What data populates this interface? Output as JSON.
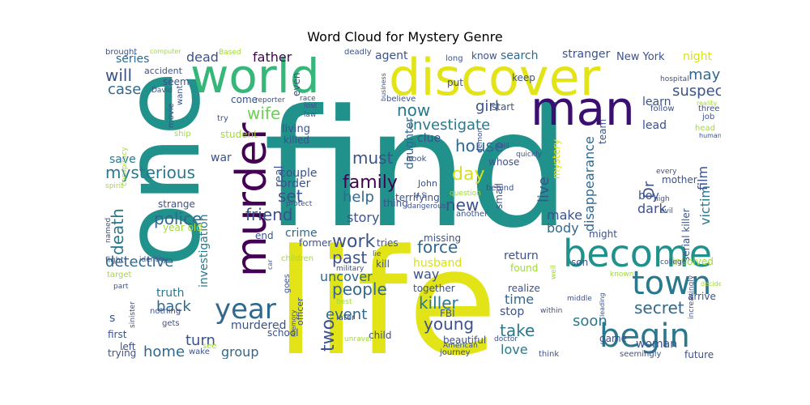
{
  "title": "Word Cloud for Mystery Genre",
  "words": [
    {
      "t": "find",
      "c": "#21918c"
    },
    {
      "t": "life",
      "c": "#e3e418"
    },
    {
      "t": "one",
      "c": "#21918c"
    },
    {
      "t": "discover",
      "c": "#e3e418"
    },
    {
      "t": "world",
      "c": "#35b779"
    },
    {
      "t": "man",
      "c": "#3b0f70"
    },
    {
      "t": "murder",
      "c": "#440154"
    },
    {
      "t": "become",
      "c": "#21918c"
    },
    {
      "t": "town",
      "c": "#2a788e"
    },
    {
      "t": "begin",
      "c": "#2a788e"
    },
    {
      "t": "year",
      "c": "#31688e"
    },
    {
      "t": "mysterious",
      "c": "#2a788e"
    },
    {
      "t": "investigate",
      "c": "#2a788e"
    },
    {
      "t": "wife",
      "c": "#6ece58"
    },
    {
      "t": "death",
      "c": "#2a788e"
    },
    {
      "t": "police",
      "c": "#31688e"
    },
    {
      "t": "family",
      "c": "#440154"
    },
    {
      "t": "friend",
      "c": "#3b528b"
    },
    {
      "t": "detective",
      "c": "#31688e"
    },
    {
      "t": "secret",
      "c": "#31688e"
    },
    {
      "t": "killer",
      "c": "#2a788e"
    },
    {
      "t": "past",
      "c": "#3b528b"
    },
    {
      "t": "work",
      "c": "#3b528b"
    },
    {
      "t": "force",
      "c": "#31688e"
    },
    {
      "t": "people",
      "c": "#31688e"
    },
    {
      "t": "young",
      "c": "#3b528b"
    },
    {
      "t": "two",
      "c": "#3b528b"
    },
    {
      "t": "back",
      "c": "#31688e"
    },
    {
      "t": "take",
      "c": "#2a788e"
    },
    {
      "t": "soon",
      "c": "#2a788e"
    },
    {
      "t": "home",
      "c": "#31688e"
    },
    {
      "t": "must",
      "c": "#3b528b"
    },
    {
      "t": "day",
      "c": "#d8e219"
    },
    {
      "t": "house",
      "c": "#31688e"
    },
    {
      "t": "new",
      "c": "#3b528b"
    },
    {
      "t": "help",
      "c": "#31688e"
    },
    {
      "t": "set",
      "c": "#3b528b"
    },
    {
      "t": "now",
      "c": "#2a788e"
    },
    {
      "t": "girl",
      "c": "#3b528b"
    },
    {
      "t": "suspect",
      "c": "#3b528b"
    },
    {
      "t": "may",
      "c": "#31688e"
    },
    {
      "t": "case",
      "c": "#31688e"
    },
    {
      "t": "will",
      "c": "#3b528b"
    },
    {
      "t": "series",
      "c": "#31688e"
    },
    {
      "t": "dead",
      "c": "#3b528b"
    },
    {
      "t": "father",
      "c": "#440154"
    },
    {
      "t": "event",
      "c": "#31688e"
    },
    {
      "t": "husband",
      "c": "#d8e219"
    },
    {
      "t": "dark",
      "c": "#3b528b"
    },
    {
      "t": "live",
      "c": "#3b528b"
    },
    {
      "t": "disappearance",
      "c": "#31688e"
    },
    {
      "t": "investigation",
      "c": "#2a788e"
    },
    {
      "t": "victim",
      "c": "#2a788e"
    },
    {
      "t": "film",
      "c": "#3b528b"
    },
    {
      "t": "Dr",
      "c": "#3b528b"
    },
    {
      "t": "group",
      "c": "#31688e"
    },
    {
      "t": "woman",
      "c": "#3b528b"
    },
    {
      "t": "love",
      "c": "#2a788e"
    },
    {
      "t": "uncover",
      "c": "#31688e"
    },
    {
      "t": "way",
      "c": "#3b528b"
    },
    {
      "t": "story",
      "c": "#3b528b"
    },
    {
      "t": "body",
      "c": "#31688e"
    },
    {
      "t": "make",
      "c": "#3b528b"
    },
    {
      "t": "turn",
      "c": "#3b528b"
    },
    {
      "t": "murdered",
      "c": "#3b528b"
    },
    {
      "t": "truth",
      "c": "#2a788e"
    },
    {
      "t": "return",
      "c": "#3b528b"
    },
    {
      "t": "time",
      "c": "#31688e"
    },
    {
      "t": "stop",
      "c": "#3b528b"
    },
    {
      "t": "crime",
      "c": "#31688e"
    },
    {
      "t": "save",
      "c": "#2a788e"
    },
    {
      "t": "couple",
      "c": "#3b528b"
    },
    {
      "t": "order",
      "c": "#3b528b"
    },
    {
      "t": "search",
      "c": "#31688e"
    },
    {
      "t": "stranger",
      "c": "#3b528b"
    },
    {
      "t": "New York",
      "c": "#3b528b"
    },
    {
      "t": "night",
      "c": "#d8e219"
    },
    {
      "t": "know",
      "c": "#3b528b"
    },
    {
      "t": "agent",
      "c": "#3b528b"
    },
    {
      "t": "seem",
      "c": "#3b528b"
    },
    {
      "t": "daughter",
      "c": "#31688e"
    },
    {
      "t": "clue",
      "c": "#3b528b"
    },
    {
      "t": "terrifying",
      "c": "#3b528b"
    },
    {
      "t": "mystery",
      "c": "#d8e219"
    },
    {
      "t": "boy",
      "c": "#3b528b"
    },
    {
      "t": "serial killer",
      "c": "#3b528b"
    },
    {
      "t": "strange",
      "c": "#3b528b"
    },
    {
      "t": "learn",
      "c": "#3b528b"
    },
    {
      "t": "lead",
      "c": "#3b528b"
    },
    {
      "t": "might",
      "c": "#3b528b"
    },
    {
      "t": "son",
      "c": "#3b528b"
    },
    {
      "t": "together",
      "c": "#3b528b"
    },
    {
      "t": "living",
      "c": "#3b528b"
    },
    {
      "t": "war",
      "c": "#3b528b"
    },
    {
      "t": "real",
      "c": "#3b528b"
    },
    {
      "t": "thing",
      "c": "#3b528b"
    },
    {
      "t": "missing",
      "c": "#3b528b"
    },
    {
      "t": "small",
      "c": "#3b528b"
    },
    {
      "t": "mother",
      "c": "#3b528b"
    },
    {
      "t": "arrive",
      "c": "#3b528b"
    },
    {
      "t": "involved",
      "c": "#a0da39"
    },
    {
      "t": "found",
      "c": "#a0da39"
    },
    {
      "t": "realize",
      "c": "#3b528b"
    },
    {
      "t": "FBI",
      "c": "#3b528b"
    },
    {
      "t": "game",
      "c": "#3b528b"
    },
    {
      "t": "beautiful",
      "c": "#3b528b"
    },
    {
      "t": "future",
      "c": "#3b528b"
    },
    {
      "t": "seemingly",
      "c": "#3b528b"
    },
    {
      "t": "start",
      "c": "#3b528b"
    },
    {
      "t": "killed",
      "c": "#3b528b"
    },
    {
      "t": "former",
      "c": "#3b528b"
    },
    {
      "t": "end",
      "c": "#3b528b"
    },
    {
      "t": "year old",
      "c": "#a0da39"
    },
    {
      "t": "student",
      "c": "#a0da39"
    },
    {
      "t": "come",
      "c": "#3b528b"
    },
    {
      "t": "even",
      "c": "#3b528b"
    },
    {
      "t": "put",
      "c": "#3b528b"
    },
    {
      "t": "keep",
      "c": "#3b528b"
    },
    {
      "t": "team",
      "c": "#3b528b"
    },
    {
      "t": "job",
      "c": "#3b528b"
    },
    {
      "t": "three",
      "c": "#3b528b"
    },
    {
      "t": "head",
      "c": "#a0da39"
    },
    {
      "t": "follow",
      "c": "#3b528b"
    },
    {
      "t": "John",
      "c": "#3b528b"
    },
    {
      "t": "U S",
      "c": "#3b528b"
    },
    {
      "t": "whose",
      "c": "#3b528b"
    },
    {
      "t": "behind",
      "c": "#3b528b"
    },
    {
      "t": "another",
      "c": "#3b528b"
    },
    {
      "t": "tries",
      "c": "#3b528b"
    },
    {
      "t": "kill",
      "c": "#3b528b"
    },
    {
      "t": "goes",
      "c": "#3b528b"
    },
    {
      "t": "officer",
      "c": "#3b528b"
    },
    {
      "t": "school",
      "c": "#3b528b"
    },
    {
      "t": "later",
      "c": "#3b528b"
    },
    {
      "t": "child",
      "c": "#3b528b"
    },
    {
      "t": "journey",
      "c": "#3b528b"
    },
    {
      "t": "think",
      "c": "#3b528b"
    },
    {
      "t": "trying",
      "c": "#3b528b"
    },
    {
      "t": "first",
      "c": "#3b528b"
    },
    {
      "t": "left",
      "c": "#3b528b"
    },
    {
      "t": "wake",
      "c": "#3b528b"
    },
    {
      "t": "see",
      "c": "#a0da39"
    },
    {
      "t": "brought",
      "c": "#3b528b"
    },
    {
      "t": "computer",
      "c": "#a0da39"
    },
    {
      "t": "Based",
      "c": "#a0da39"
    },
    {
      "t": "deadly",
      "c": "#3b528b"
    },
    {
      "t": "long",
      "c": "#3b528b"
    },
    {
      "t": "accident",
      "c": "#3b528b"
    },
    {
      "t": "David",
      "c": "#3b528b"
    },
    {
      "t": "want",
      "c": "#3b528b"
    },
    {
      "t": "movie",
      "c": "#3b528b"
    },
    {
      "t": "ship",
      "c": "#a0da39"
    },
    {
      "t": "conspiracy",
      "c": "#a0da39"
    },
    {
      "t": "spirit",
      "c": "#a0da39"
    },
    {
      "t": "named",
      "c": "#3b528b"
    },
    {
      "t": "fight",
      "c": "#3b528b"
    },
    {
      "t": "identity",
      "c": "#3b528b"
    },
    {
      "t": "target",
      "c": "#a0da39"
    },
    {
      "t": "part",
      "c": "#3b528b"
    },
    {
      "t": "sinister",
      "c": "#3b528b"
    },
    {
      "t": "nothing",
      "c": "#3b528b"
    },
    {
      "t": "gets",
      "c": "#3b528b"
    },
    {
      "t": "business",
      "c": "#3b528b"
    },
    {
      "t": "believe",
      "c": "#3b528b"
    },
    {
      "t": "reporter",
      "c": "#3b528b"
    },
    {
      "t": "race",
      "c": "#3b528b"
    },
    {
      "t": "lost",
      "c": "#3b528b"
    },
    {
      "t": "law",
      "c": "#3b528b"
    },
    {
      "t": "try",
      "c": "#3b528b"
    },
    {
      "t": "book",
      "c": "#3b528b"
    },
    {
      "t": "demon",
      "c": "#3b528b"
    },
    {
      "t": "still",
      "c": "#3b528b"
    },
    {
      "t": "quickly",
      "c": "#3b528b"
    },
    {
      "t": "hospital",
      "c": "#3b528b"
    },
    {
      "t": "reality",
      "c": "#a0da39"
    },
    {
      "t": "human",
      "c": "#3b528b"
    },
    {
      "t": "every",
      "c": "#3b528b"
    },
    {
      "t": "high",
      "c": "#3b528b"
    },
    {
      "t": "evil",
      "c": "#3b528b"
    },
    {
      "t": "college",
      "c": "#3b528b"
    },
    {
      "t": "question",
      "c": "#a0da39"
    },
    {
      "t": "protect",
      "c": "#3b528b"
    },
    {
      "t": "dangerous",
      "c": "#3b528b"
    },
    {
      "t": "children",
      "c": "#a0da39"
    },
    {
      "t": "military",
      "c": "#3b528b"
    },
    {
      "t": "lie",
      "c": "#3b528b"
    },
    {
      "t": "memory",
      "c": "#3b528b"
    },
    {
      "t": "unravel",
      "c": "#a0da39"
    },
    {
      "t": "best",
      "c": "#a0da39"
    },
    {
      "t": "American",
      "c": "#3b528b"
    },
    {
      "t": "doctor",
      "c": "#3b528b"
    },
    {
      "t": "within",
      "c": "#3b528b"
    },
    {
      "t": "known",
      "c": "#a0da39"
    },
    {
      "t": "middle",
      "c": "#3b528b"
    },
    {
      "t": "leading",
      "c": "#3b528b"
    },
    {
      "t": "decide",
      "c": "#a0da39"
    },
    {
      "t": "increasingly",
      "c": "#3b528b"
    },
    {
      "t": "car",
      "c": "#3b528b"
    },
    {
      "t": "well",
      "c": "#a0da39"
    },
    {
      "t": "s",
      "c": "#3b528b"
    }
  ]
}
